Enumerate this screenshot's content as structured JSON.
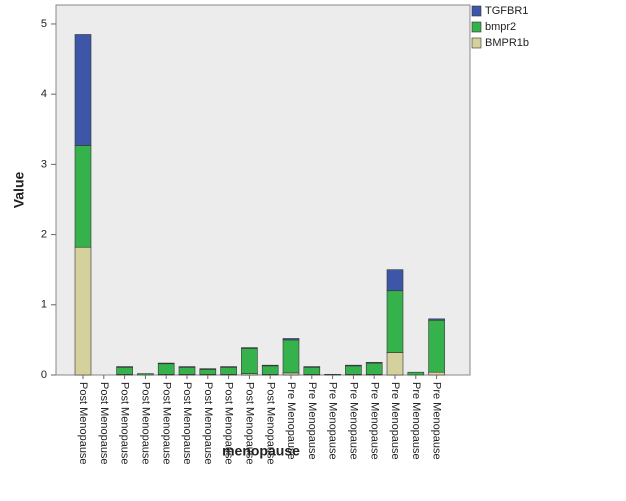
{
  "chart_data": {
    "type": "stacked_bar",
    "x_label": "menopause",
    "y_label": "Value",
    "categories": [
      "Post Menopause",
      "Post Menopause",
      "Post Menopause",
      "Post Menopause",
      "Post Menopause",
      "Post Menopause",
      "Post Menopause",
      "Post Menopause",
      "Post Menopause",
      "Post Menopause",
      "Pre Menopause",
      "Pre Menopause",
      "Pre Menopause",
      "Pre Menopause",
      "Pre Menopause",
      "Pre Menopause",
      "Pre Menopause",
      "Pre Menopause"
    ],
    "series": [
      {
        "name": "BMPR1b",
        "color": "#d5d19d",
        "values": [
          1.82,
          0,
          0.01,
          0,
          0.01,
          0.01,
          0.01,
          0.01,
          0.02,
          0.01,
          0.03,
          0.01,
          0,
          0.01,
          0.01,
          0.32,
          0,
          0.04
        ]
      },
      {
        "name": "bmpr2",
        "color": "#36b24c",
        "values": [
          1.45,
          0,
          0.1,
          0.02,
          0.15,
          0.1,
          0.07,
          0.1,
          0.36,
          0.12,
          0.47,
          0.1,
          0.01,
          0.12,
          0.16,
          0.88,
          0.04,
          0.74
        ]
      },
      {
        "name": "TGFBR1",
        "color": "#3e56a8",
        "values": [
          1.58,
          0,
          0.01,
          0,
          0.01,
          0.01,
          0.01,
          0.01,
          0.01,
          0.01,
          0.02,
          0.01,
          0,
          0.01,
          0.01,
          0.3,
          0,
          0.02
        ]
      }
    ],
    "legend_order": [
      2,
      1,
      0
    ],
    "ylim": [
      0,
      5.27
    ],
    "yticks": [
      0,
      1,
      2,
      3,
      4,
      5
    ]
  }
}
